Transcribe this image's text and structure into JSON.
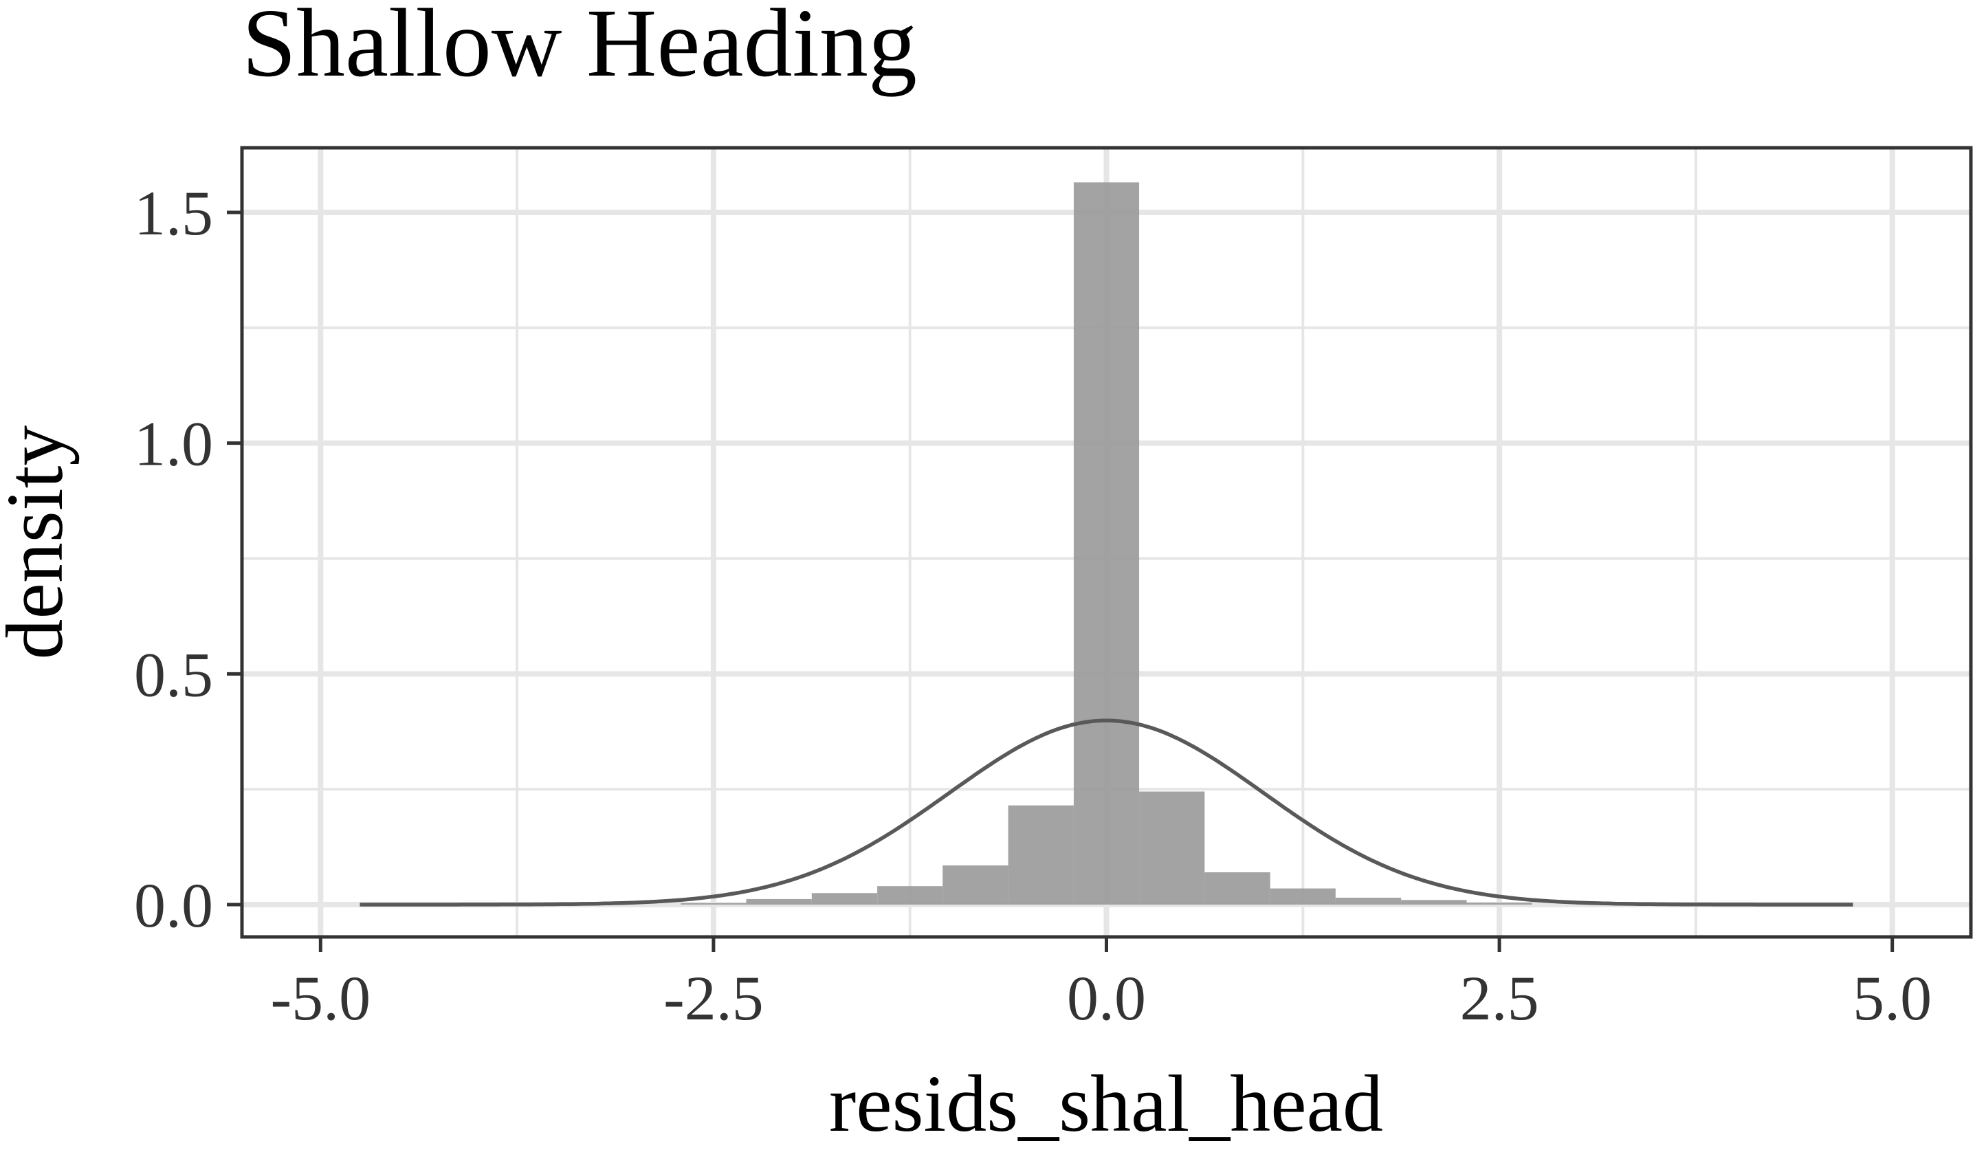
{
  "chart_data": {
    "type": "histogram",
    "title": "Shallow Heading",
    "xlabel": "resids_shal_head",
    "ylabel": "density",
    "xlim": [
      -5.5,
      5.5
    ],
    "ylim": [
      -0.07,
      1.64
    ],
    "x_ticks": [
      -5.0,
      -2.5,
      0.0,
      2.5,
      5.0
    ],
    "x_tick_labels": [
      "-5.0",
      "-2.5",
      "0.0",
      "2.5",
      "5.0"
    ],
    "y_ticks": [
      0.0,
      0.5,
      1.0,
      1.5
    ],
    "y_tick_labels": [
      "0.0",
      "0.5",
      "1.0",
      "1.5"
    ],
    "grid": true,
    "bin_width": 0.417,
    "bins": [
      {
        "start": -2.708,
        "end": -2.292,
        "density": 0.003
      },
      {
        "start": -2.292,
        "end": -1.875,
        "density": 0.012
      },
      {
        "start": -1.875,
        "end": -1.458,
        "density": 0.025
      },
      {
        "start": -1.458,
        "end": -1.042,
        "density": 0.04
      },
      {
        "start": -1.042,
        "end": -0.625,
        "density": 0.085
      },
      {
        "start": -0.625,
        "end": -0.208,
        "density": 0.215
      },
      {
        "start": -0.208,
        "end": 0.208,
        "density": 1.565
      },
      {
        "start": 0.208,
        "end": 0.625,
        "density": 0.245
      },
      {
        "start": 0.625,
        "end": 1.042,
        "density": 0.07
      },
      {
        "start": 1.042,
        "end": 1.458,
        "density": 0.035
      },
      {
        "start": 1.458,
        "end": 1.875,
        "density": 0.015
      },
      {
        "start": 1.875,
        "end": 2.292,
        "density": 0.01
      },
      {
        "start": 2.292,
        "end": 2.708,
        "density": 0.004
      }
    ],
    "curve": {
      "type": "normal",
      "mean": 0,
      "sd": 1,
      "x_range": [
        -4.75,
        4.75
      ]
    },
    "colors": {
      "bars": "#999999",
      "curve": "#595959",
      "grid": "#e6e6e6",
      "border": "#333333"
    }
  }
}
